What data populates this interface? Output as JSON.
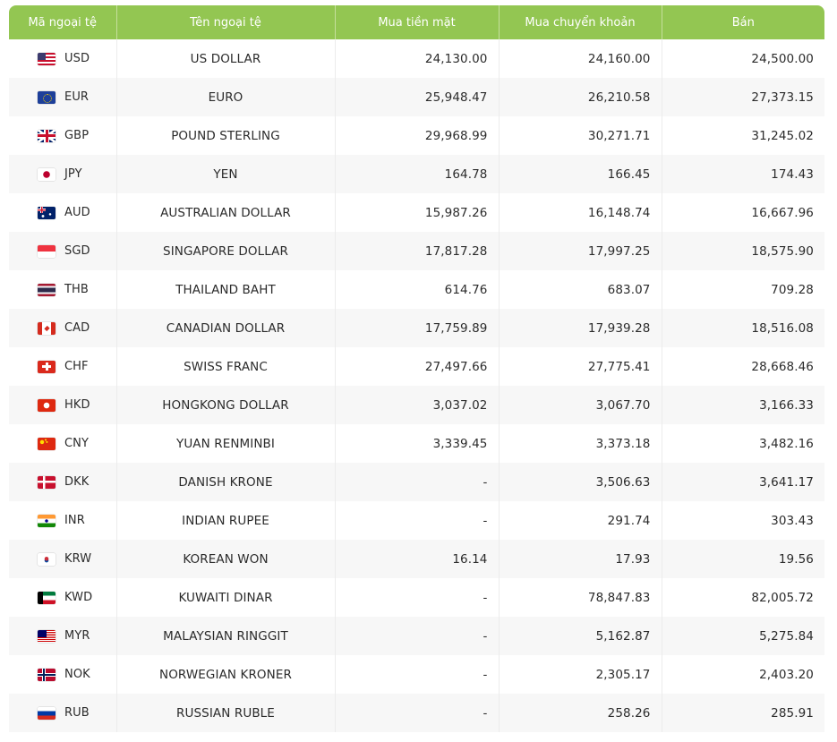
{
  "table": {
    "headers": [
      "Mã ngoại tệ",
      "Tên ngoại tệ",
      "Mua tiền mặt",
      "Mua chuyển khoản",
      "Bán"
    ],
    "rows": [
      {
        "code": "USD",
        "flag": "us-flag-icon",
        "name": "US DOLLAR",
        "cash_buy": "24,130.00",
        "transfer_buy": "24,160.00",
        "sell": "24,500.00"
      },
      {
        "code": "EUR",
        "flag": "eu-flag-icon",
        "name": "EURO",
        "cash_buy": "25,948.47",
        "transfer_buy": "26,210.58",
        "sell": "27,373.15"
      },
      {
        "code": "GBP",
        "flag": "uk-flag-icon",
        "name": "POUND STERLING",
        "cash_buy": "29,968.99",
        "transfer_buy": "30,271.71",
        "sell": "31,245.02"
      },
      {
        "code": "JPY",
        "flag": "japan-flag-icon",
        "name": "YEN",
        "cash_buy": "164.78",
        "transfer_buy": "166.45",
        "sell": "174.43"
      },
      {
        "code": "AUD",
        "flag": "australia-flag-icon",
        "name": "AUSTRALIAN DOLLAR",
        "cash_buy": "15,987.26",
        "transfer_buy": "16,148.74",
        "sell": "16,667.96"
      },
      {
        "code": "SGD",
        "flag": "singapore-flag-icon",
        "name": "SINGAPORE DOLLAR",
        "cash_buy": "17,817.28",
        "transfer_buy": "17,997.25",
        "sell": "18,575.90"
      },
      {
        "code": "THB",
        "flag": "thailand-flag-icon",
        "name": "THAILAND BAHT",
        "cash_buy": "614.76",
        "transfer_buy": "683.07",
        "sell": "709.28"
      },
      {
        "code": "CAD",
        "flag": "canada-flag-icon",
        "name": "CANADIAN DOLLAR",
        "cash_buy": "17,759.89",
        "transfer_buy": "17,939.28",
        "sell": "18,516.08"
      },
      {
        "code": "CHF",
        "flag": "switzerland-flag-icon",
        "name": "SWISS FRANC",
        "cash_buy": "27,497.66",
        "transfer_buy": "27,775.41",
        "sell": "28,668.46"
      },
      {
        "code": "HKD",
        "flag": "hongkong-flag-icon",
        "name": "HONGKONG DOLLAR",
        "cash_buy": "3,037.02",
        "transfer_buy": "3,067.70",
        "sell": "3,166.33"
      },
      {
        "code": "CNY",
        "flag": "china-flag-icon",
        "name": "YUAN RENMINBI",
        "cash_buy": "3,339.45",
        "transfer_buy": "3,373.18",
        "sell": "3,482.16"
      },
      {
        "code": "DKK",
        "flag": "denmark-flag-icon",
        "name": "DANISH KRONE",
        "cash_buy": "-",
        "transfer_buy": "3,506.63",
        "sell": "3,641.17"
      },
      {
        "code": "INR",
        "flag": "india-flag-icon",
        "name": "INDIAN RUPEE",
        "cash_buy": "-",
        "transfer_buy": "291.74",
        "sell": "303.43"
      },
      {
        "code": "KRW",
        "flag": "korea-flag-icon",
        "name": "KOREAN WON",
        "cash_buy": "16.14",
        "transfer_buy": "17.93",
        "sell": "19.56"
      },
      {
        "code": "KWD",
        "flag": "kuwait-flag-icon",
        "name": "KUWAITI DINAR",
        "cash_buy": "-",
        "transfer_buy": "78,847.83",
        "sell": "82,005.72"
      },
      {
        "code": "MYR",
        "flag": "malaysia-flag-icon",
        "name": "MALAYSIAN RINGGIT",
        "cash_buy": "-",
        "transfer_buy": "5,162.87",
        "sell": "5,275.84"
      },
      {
        "code": "NOK",
        "flag": "norway-flag-icon",
        "name": "NORWEGIAN KRONER",
        "cash_buy": "-",
        "transfer_buy": "2,305.17",
        "sell": "2,403.20"
      },
      {
        "code": "RUB",
        "flag": "russia-flag-icon",
        "name": "RUSSIAN RUBLE",
        "cash_buy": "-",
        "transfer_buy": "258.26",
        "sell": "285.91"
      }
    ]
  },
  "colors": {
    "header_bg": "#93c652",
    "header_text": "#ffffff",
    "row_alt_bg": "#f7f7f7"
  }
}
